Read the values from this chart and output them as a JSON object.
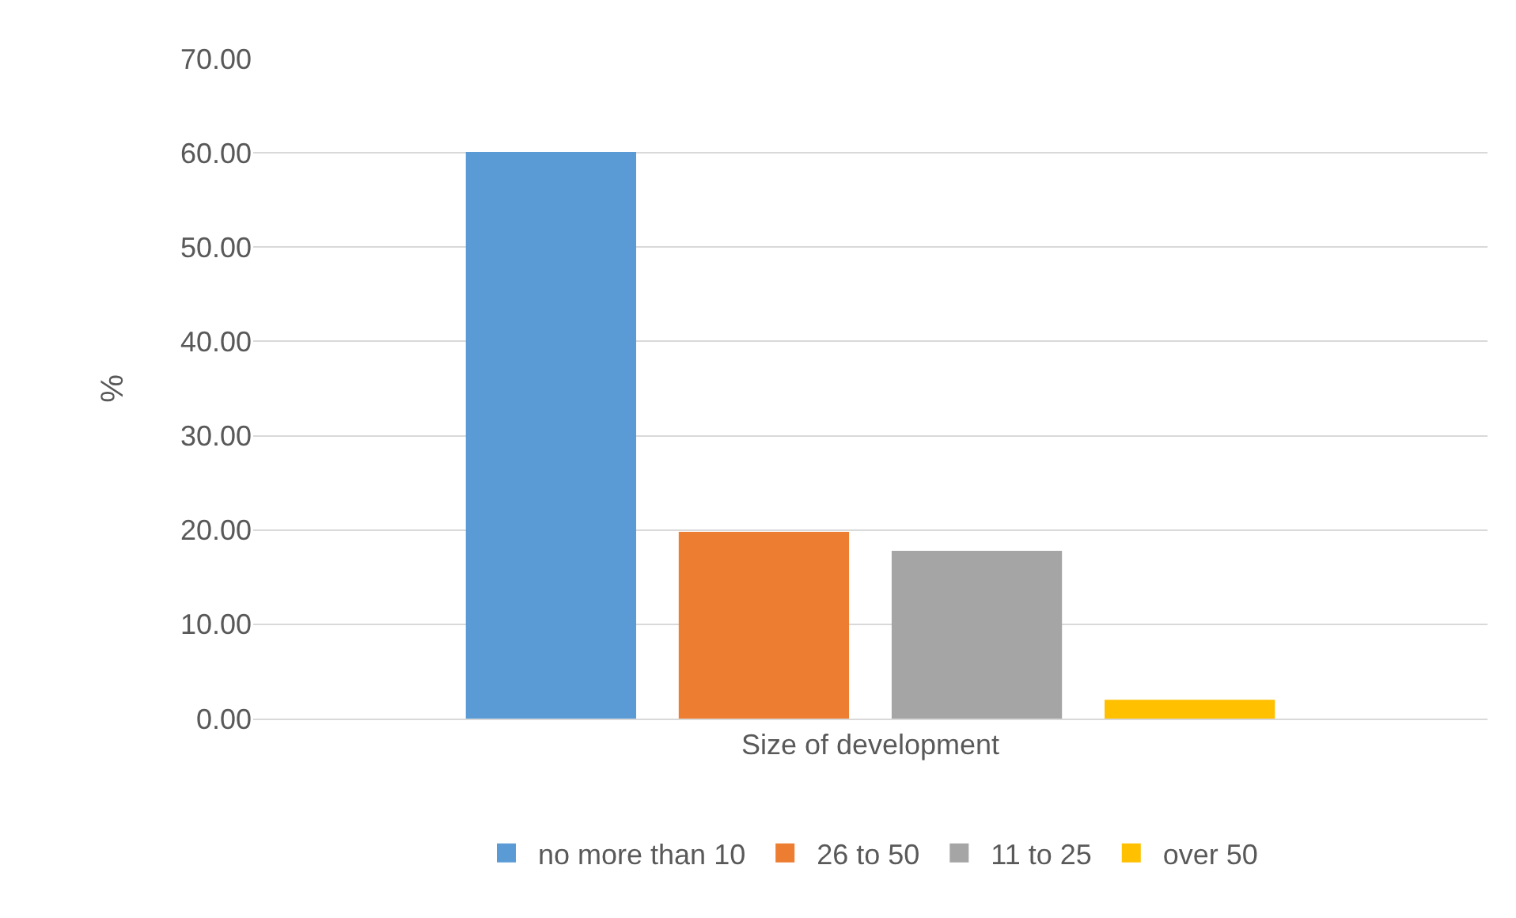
{
  "chart_data": {
    "type": "bar",
    "ylabel": "%",
    "categories": [
      "Size of development"
    ],
    "series": [
      {
        "name": "no more than 10",
        "color": "#5b9bd5",
        "values": [
          60.1
        ]
      },
      {
        "name": "26 to 50",
        "color": "#ed7d31",
        "values": [
          19.8
        ]
      },
      {
        "name": "11 to 25",
        "color": "#a5a5a5",
        "values": [
          17.8
        ]
      },
      {
        "name": "over 50",
        "color": "#ffc000",
        "values": [
          2.0
        ]
      }
    ],
    "ylim": [
      0,
      70
    ],
    "yticks": [
      {
        "value": 0,
        "label": "0.00"
      },
      {
        "value": 10,
        "label": "10.00"
      },
      {
        "value": 20,
        "label": "20.00"
      },
      {
        "value": 30,
        "label": "30.00"
      },
      {
        "value": 40,
        "label": "40.00"
      },
      {
        "value": 50,
        "label": "50.00"
      },
      {
        "value": 60,
        "label": "60.00"
      },
      {
        "value": 70,
        "label": "70.00"
      }
    ],
    "grid": "y",
    "legend": "bottom"
  }
}
